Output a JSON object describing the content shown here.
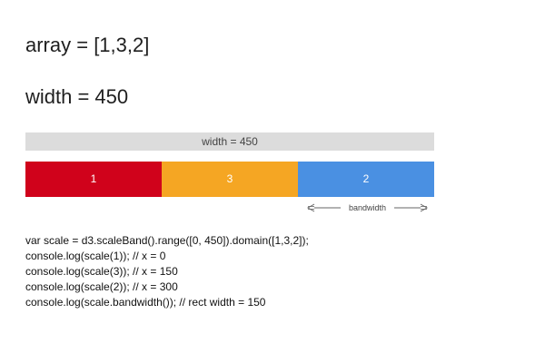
{
  "headings": {
    "array": "array = [1,3,2]",
    "width": "width = 450"
  },
  "width_bar": {
    "label": "width = 450"
  },
  "scale": {
    "domain": [
      1,
      3,
      2
    ],
    "range": [
      0,
      450
    ]
  },
  "bands": [
    {
      "label": "1",
      "color": "#d0021b"
    },
    {
      "label": "3",
      "color": "#f5a623"
    },
    {
      "label": "2",
      "color": "#4a90e2"
    }
  ],
  "annotation": {
    "label": "bandwidth",
    "left_arrow_icon": "arrow-left-icon",
    "right_arrow_icon": "arrow-right-icon"
  },
  "code_lines": [
    "var scale = d3.scaleBand().range([0, 450]).domain([1,3,2]);",
    "console.log(scale(1)); // x = 0",
    "console.log(scale(3)); // x = 150",
    "console.log(scale(2)); // x = 300",
    "console.log(scale.bandwidth()); // rect width = 150"
  ]
}
